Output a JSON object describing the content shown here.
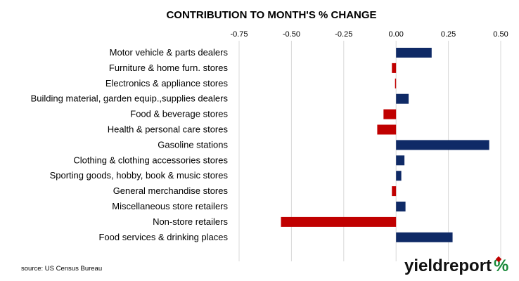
{
  "chart_data": {
    "type": "bar",
    "orientation": "horizontal",
    "title": "CONTRIBUTION TO MONTH'S % CHANGE",
    "categories": [
      "Motor vehicle & parts dealers",
      "Furniture & home furn. stores",
      "Electronics & appliance stores",
      "Building material, garden equip.,supplies dealers",
      "Food & beverage stores",
      "Health & personal care stores",
      "Gasoline stations",
      "Clothing & clothing accessories stores",
      "Sporting goods, hobby, book & music stores",
      "General merchandise stores",
      "Miscellaneous store retailers",
      "Non-store retailers",
      "Food services & drinking places"
    ],
    "values": [
      0.17,
      -0.02,
      -0.005,
      0.06,
      -0.06,
      -0.09,
      0.445,
      0.04,
      0.025,
      -0.02,
      0.045,
      -0.55,
      0.27
    ],
    "xlim": [
      -0.75,
      0.5
    ],
    "ticks": [
      "-0.75",
      "-0.50",
      "-0.25",
      "0.00",
      "0.25",
      "0.50"
    ],
    "tick_values": [
      -0.75,
      -0.5,
      -0.25,
      0,
      0.25,
      0.5
    ],
    "grid": true,
    "legend": "none",
    "colors": {
      "positive": "#0f2a66",
      "negative": "#c00000",
      "grid": "#d9d9d9"
    }
  },
  "source": "source: US Census Bureau",
  "logo": {
    "text": "yieldreport",
    "symbol": "%"
  }
}
